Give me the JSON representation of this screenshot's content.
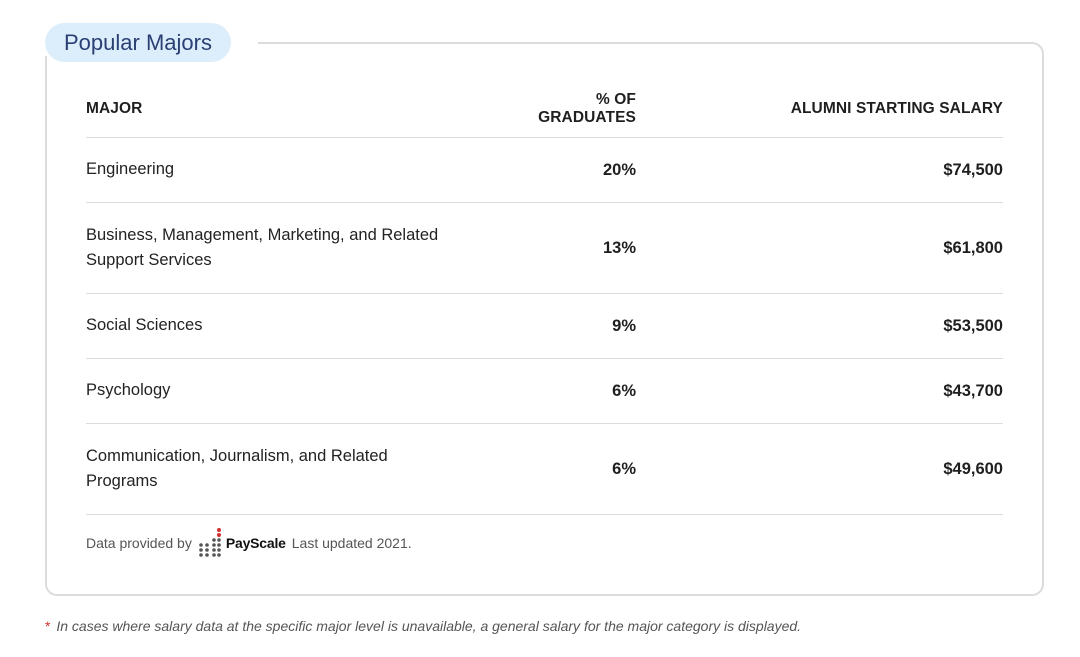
{
  "card": {
    "title": "Popular Majors"
  },
  "table": {
    "headers": {
      "major": "MAJOR",
      "pct": "% OF GRADUATES",
      "salary": "ALUMNI STARTING SALARY"
    },
    "rows": [
      {
        "major": "Engineering",
        "pct": "20%",
        "salary": "$74,500"
      },
      {
        "major": "Business, Management, Marketing, and Related Support Services",
        "pct": "13%",
        "salary": "$61,800"
      },
      {
        "major": "Social Sciences",
        "pct": "9%",
        "salary": "$53,500"
      },
      {
        "major": "Psychology",
        "pct": "6%",
        "salary": "$43,700"
      },
      {
        "major": "Communication, Journalism, and Related Programs",
        "pct": "6%",
        "salary": "$49,600"
      }
    ]
  },
  "footer": {
    "provided_by": "Data provided by",
    "logo_text": "PayScale",
    "updated": "Last updated 2021."
  },
  "note": {
    "star": "*",
    "text": "In cases where salary data at the specific major level is unavailable, a general salary for the major category is displayed."
  },
  "colors": {
    "pill_bg": "#dceefb",
    "pill_text": "#2a3f73",
    "border": "#dcdcdc",
    "logo_red": "#d32f2f",
    "logo_gray": "#555555"
  },
  "icons": {
    "logo": "payscale-dots-icon"
  }
}
